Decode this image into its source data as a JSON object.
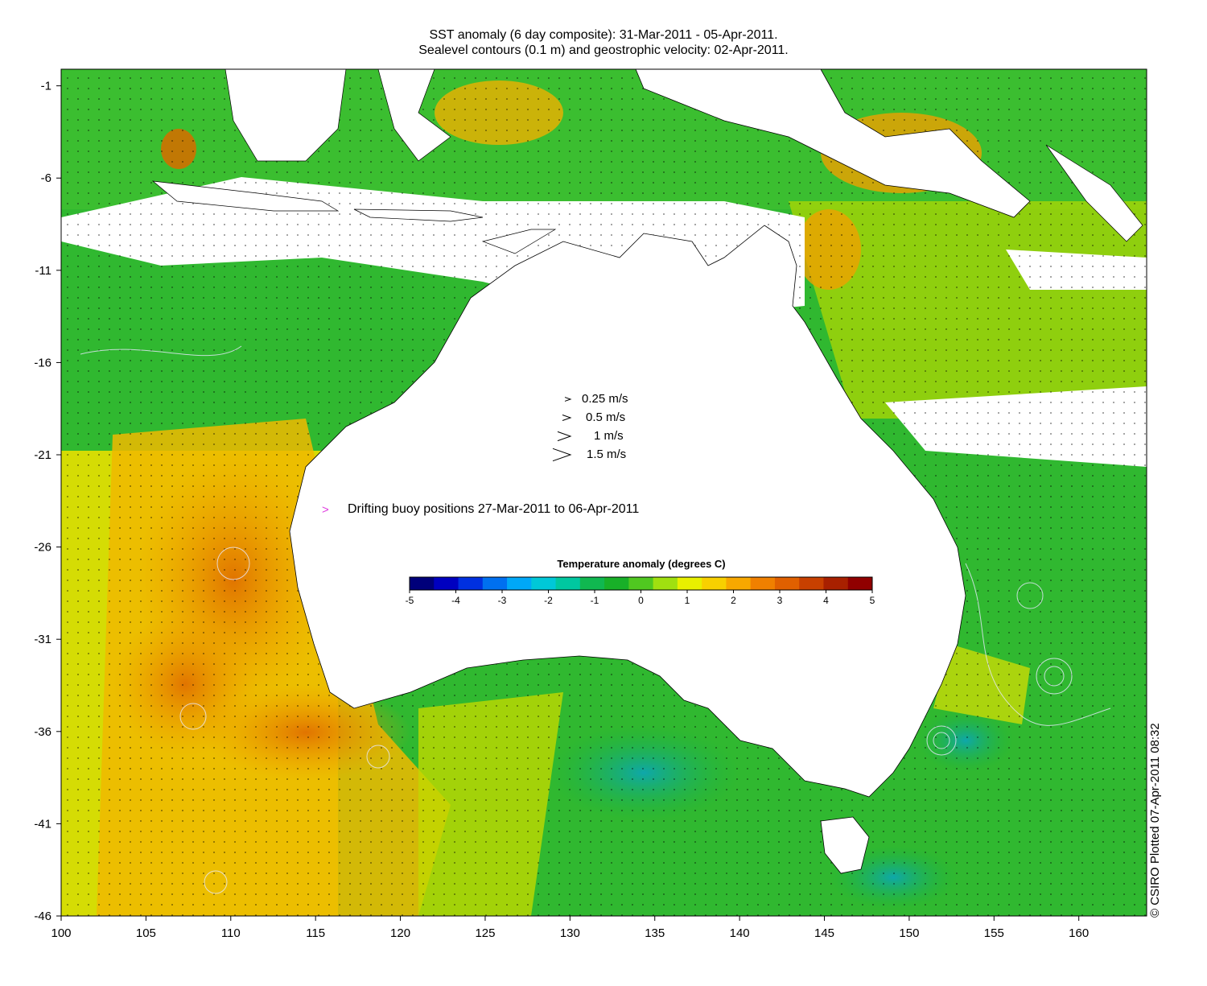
{
  "title_line1": "SST anomaly (6 day composite): 31-Mar-2011 - 05-Apr-2011.",
  "title_line2": "Sealevel contours (0.1 m) and geostrophic velocity: 02-Apr-2011.",
  "map": {
    "lon_range": [
      100,
      164
    ],
    "lat_range": [
      -46,
      -0.1
    ],
    "x_ticks": [
      100,
      105,
      110,
      115,
      120,
      125,
      130,
      135,
      140,
      145,
      150,
      155,
      160
    ],
    "y_ticks": [
      -1,
      -6,
      -11,
      -16,
      -21,
      -26,
      -31,
      -36,
      -41,
      -46
    ]
  },
  "velocity_legend": [
    {
      "label": "0.25 m/s",
      "speed": 0.25
    },
    {
      "label": "0.5 m/s",
      "speed": 0.5
    },
    {
      "label": "1 m/s",
      "speed": 1
    },
    {
      "label": "1.5 m/s",
      "speed": 1.5
    }
  ],
  "buoy_legend": {
    "symbol": ">",
    "label": "Drifting buoy positions 27-Mar-2011 to 06-Apr-2011",
    "color": "#e040e0"
  },
  "colorbar": {
    "title": "Temperature anomaly (degrees C)",
    "min": -5,
    "max": 5,
    "ticks": [
      "-5",
      "-4",
      "-3",
      "-2",
      "-1",
      "0",
      "1",
      "2",
      "3",
      "4",
      "5"
    ],
    "colors": [
      "#00007a",
      "#0000c0",
      "#0030e0",
      "#0070f0",
      "#00a8f8",
      "#00c8d8",
      "#00c8a0",
      "#10b850",
      "#18b028",
      "#50c820",
      "#a0e010",
      "#e8f000",
      "#f8d000",
      "#f8a800",
      "#f08000",
      "#e06000",
      "#c84000",
      "#a82000",
      "#900000"
    ]
  },
  "credit": "© CSIRO Plotted 07-Apr-2011 08:32"
}
